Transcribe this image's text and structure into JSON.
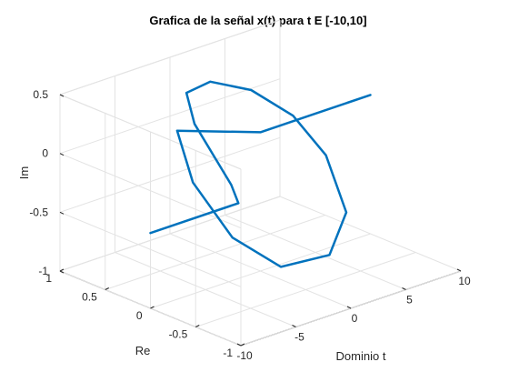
{
  "chart_data": {
    "type": "line",
    "projection": "3d",
    "title": "Grafica de la señal x(t) para t E [-10,10]",
    "xlabel": "Dominio t",
    "ylabel": "Re",
    "zlabel": "Im",
    "xlim": [
      -10,
      10
    ],
    "ylim": [
      -1,
      1
    ],
    "zlim": [
      -1,
      0.5
    ],
    "xticks": [
      "-10",
      "-5",
      "0",
      "5",
      "10"
    ],
    "yticks": [
      "-1",
      "-0.5",
      "0",
      "0.5",
      "1"
    ],
    "zticks": [
      "-1",
      "-0.5",
      "0",
      "0.5"
    ],
    "grid": true,
    "series": [
      {
        "color": "#0072BD",
        "points": [
          [
            -10,
            0,
            -0.36
          ],
          [
            -2,
            0,
            -0.36
          ],
          [
            -1,
            0.2,
            -0.3
          ],
          [
            0,
            0.5,
            -0.2
          ],
          [
            1,
            0.85,
            -0.05
          ],
          [
            1.5,
            1.0,
            0.15
          ],
          [
            1.2,
            0.7,
            0.35
          ],
          [
            0.8,
            0.2,
            0.45
          ],
          [
            0.5,
            -0.3,
            0.4
          ],
          [
            0.2,
            -0.7,
            0.2
          ],
          [
            0,
            -0.95,
            -0.2
          ],
          [
            -0.3,
            -0.8,
            -0.6
          ],
          [
            -0.6,
            -0.3,
            -0.85
          ],
          [
            -0.9,
            0.2,
            -0.75
          ],
          [
            -1.2,
            0.6,
            -0.4
          ],
          [
            -1.4,
            0.75,
            0.0
          ],
          [
            0,
            0,
            0.18
          ],
          [
            10,
            0,
            0.18
          ]
        ]
      }
    ]
  }
}
